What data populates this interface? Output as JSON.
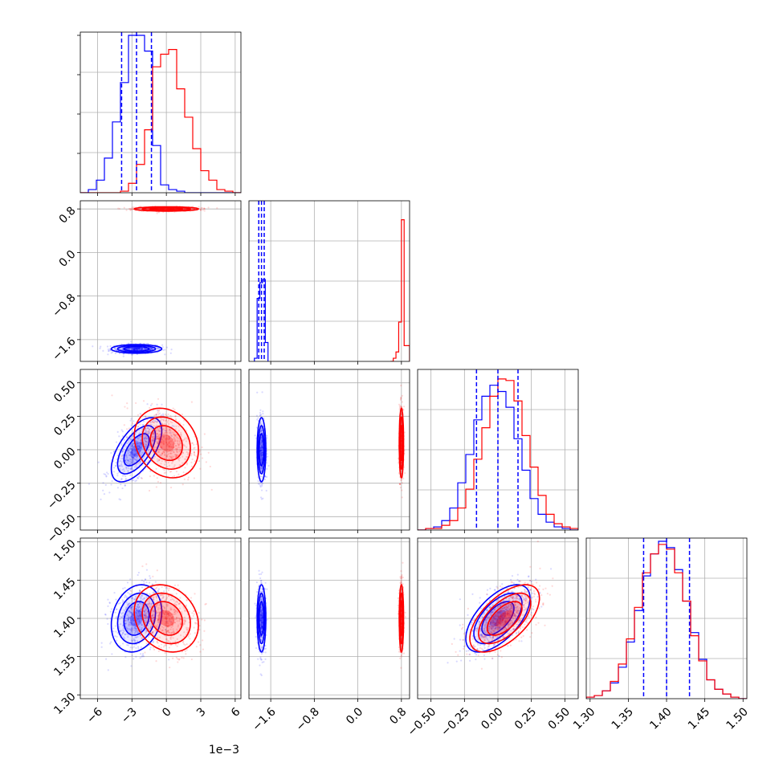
{
  "chart_data": {
    "type": "corner",
    "parameters": [
      {
        "ticks": [
          -6,
          -3,
          0,
          3,
          6
        ],
        "tick_labels": [
          "−6",
          "−3",
          "0",
          "3",
          "6"
        ],
        "range": [
          -7.5,
          6.5
        ],
        "offset_label": "1e−3",
        "values_scaled_by": 0.001
      },
      {
        "ticks": [
          -1.6,
          -0.8,
          0.0,
          0.8
        ],
        "tick_labels": [
          "−1.6",
          "−0.8",
          "0.0",
          "0.8"
        ],
        "range": [
          -2.0,
          0.95
        ]
      },
      {
        "ticks": [
          -0.5,
          -0.25,
          0.0,
          0.25,
          0.5
        ],
        "tick_labels": [
          "−0.50",
          "−0.25",
          "0.00",
          "0.25",
          "0.50"
        ],
        "range": [
          -0.6,
          0.6
        ]
      },
      {
        "ticks": [
          1.3,
          1.35,
          1.4,
          1.45,
          1.5
        ],
        "tick_labels": [
          "1.30",
          "1.35",
          "1.40",
          "1.45",
          "1.50"
        ],
        "range": [
          1.295,
          1.505
        ]
      }
    ],
    "series": [
      {
        "color": "#0000ff",
        "quantiles": [
          [
            -3.9,
            -2.6,
            -1.3
          ],
          [
            -1.82,
            -1.77,
            -1.72
          ],
          [
            -0.16,
            0.0,
            0.15
          ],
          [
            1.37,
            1.4,
            1.43
          ]
        ],
        "means": [
          -2.6,
          -1.77,
          0.0,
          1.4
        ],
        "sds": [
          1.1,
          0.04,
          0.12,
          0.022
        ],
        "correlations": {
          "0-2": 0.6,
          "0-3": 0.2,
          "2-3": 0.6
        },
        "histograms": [
          {
            "edges": [
              -7.5,
              -6.8,
              -6.1,
              -5.4,
              -4.7,
              -4.0,
              -3.3,
              -2.6,
              -1.9,
              -1.2,
              -0.5,
              0.2,
              0.9,
              1.6,
              2.3,
              3.0,
              3.7,
              4.4,
              5.1,
              5.8,
              6.5
            ],
            "counts": [
              0,
              0.02,
              0.08,
              0.22,
              0.45,
              0.7,
              1.0,
              1.0,
              0.9,
              0.3,
              0.05,
              0.02,
              0.01,
              0,
              0,
              0,
              0,
              0,
              0,
              0
            ]
          },
          {
            "edges": [
              -1.9,
              -1.85,
              -1.8,
              -1.75,
              -1.7,
              -1.65
            ],
            "counts": [
              0.02,
              0.4,
              0.5,
              0.52,
              0.12
            ]
          },
          {
            "edges": [
              -0.6,
              -0.54,
              -0.48,
              -0.42,
              -0.36,
              -0.3,
              -0.24,
              -0.18,
              -0.12,
              -0.06,
              0.0,
              0.06,
              0.12,
              0.18,
              0.24,
              0.3,
              0.36,
              0.42,
              0.48,
              0.54,
              0.6
            ],
            "counts": [
              0,
              0.01,
              0.02,
              0.06,
              0.14,
              0.3,
              0.48,
              0.7,
              0.85,
              0.92,
              0.88,
              0.78,
              0.58,
              0.38,
              0.2,
              0.1,
              0.05,
              0.02,
              0.01,
              0
            ]
          },
          {
            "edges": [
              1.295,
              1.3055,
              1.316,
              1.3265,
              1.337,
              1.3475,
              1.358,
              1.3685,
              1.379,
              1.3895,
              1.4,
              1.4105,
              1.421,
              1.4315,
              1.442,
              1.4525,
              1.463,
              1.4735,
              1.484,
              1.4945,
              1.505
            ],
            "counts": [
              0.01,
              0.02,
              0.05,
              0.1,
              0.2,
              0.36,
              0.56,
              0.78,
              0.92,
              1.0,
              0.96,
              0.82,
              0.62,
              0.42,
              0.25,
              0.12,
              0.06,
              0.03,
              0.01,
              0
            ]
          }
        ]
      },
      {
        "color": "#ff0000",
        "quantiles": [
          [
            -1.3,
            0.0,
            1.4
          ],
          [
            0.78,
            0.8,
            0.82
          ],
          [
            -0.1,
            0.05,
            0.2
          ],
          [
            1.37,
            1.4,
            1.43
          ]
        ],
        "means": [
          0.0,
          0.8,
          0.05,
          1.4
        ],
        "sds": [
          1.4,
          0.02,
          0.13,
          0.022
        ],
        "correlations": {
          "0-2": -0.2,
          "0-3": -0.2,
          "2-3": 0.6
        },
        "histograms": [
          {
            "edges": [
              -7.5,
              -6.8,
              -6.1,
              -5.4,
              -4.7,
              -4.0,
              -3.3,
              -2.6,
              -1.9,
              -1.2,
              -0.5,
              0.2,
              0.9,
              1.6,
              2.3,
              3.0,
              3.7,
              4.4,
              5.1,
              5.8,
              6.5
            ],
            "counts": [
              0,
              0,
              0,
              0,
              0,
              0.01,
              0.06,
              0.18,
              0.4,
              0.8,
              0.88,
              0.91,
              0.66,
              0.48,
              0.28,
              0.14,
              0.08,
              0.02,
              0.01,
              0
            ]
          },
          {
            "edges": [
              0.6,
              0.65,
              0.7,
              0.75,
              0.8,
              0.85,
              0.95
            ],
            "counts": [
              0,
              0.02,
              0.06,
              0.25,
              0.9,
              0.1
            ]
          },
          {
            "edges": [
              -0.6,
              -0.54,
              -0.48,
              -0.42,
              -0.36,
              -0.3,
              -0.24,
              -0.18,
              -0.12,
              -0.06,
              0.0,
              0.06,
              0.12,
              0.18,
              0.24,
              0.3,
              0.36,
              0.42,
              0.48,
              0.54,
              0.6
            ],
            "counts": [
              0,
              0.01,
              0.01,
              0.03,
              0.06,
              0.14,
              0.26,
              0.45,
              0.65,
              0.85,
              0.96,
              0.95,
              0.82,
              0.6,
              0.4,
              0.22,
              0.1,
              0.04,
              0.02,
              0.01
            ]
          },
          {
            "edges": [
              1.295,
              1.3055,
              1.316,
              1.3265,
              1.337,
              1.3475,
              1.358,
              1.3685,
              1.379,
              1.3895,
              1.4,
              1.4105,
              1.421,
              1.4315,
              1.442,
              1.4525,
              1.463,
              1.4735,
              1.484,
              1.4945,
              1.505
            ],
            "counts": [
              0.01,
              0.02,
              0.05,
              0.11,
              0.22,
              0.38,
              0.58,
              0.8,
              0.92,
              0.98,
              0.95,
              0.8,
              0.62,
              0.4,
              0.24,
              0.12,
              0.06,
              0.03,
              0.01,
              0
            ]
          }
        ]
      }
    ],
    "grid": true,
    "diagonal": "histogram",
    "off_diagonal": "scatter+contour",
    "quantile_marker_color": "#0000ff",
    "quantile_marker_style": "dashed"
  }
}
